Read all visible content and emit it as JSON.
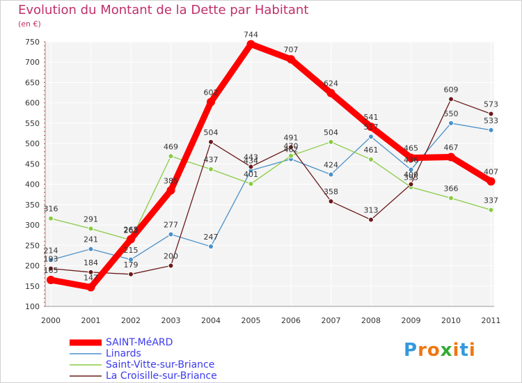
{
  "header": {
    "title": "Evolution du Montant de la Dette par Habitant",
    "subtitle": "(en €)"
  },
  "chart_data": {
    "type": "line",
    "title": "Evolution du Montant de la Dette par Habitant",
    "ylabel": "(en €)",
    "xlabel": "",
    "x": [
      "2000",
      "2001",
      "2002",
      "2003",
      "2004",
      "2005",
      "2006",
      "2007",
      "2008",
      "2009",
      "2010",
      "2011"
    ],
    "ylim": [
      100,
      750
    ],
    "yticks": [
      100,
      150,
      200,
      250,
      300,
      350,
      400,
      450,
      500,
      550,
      600,
      650,
      700,
      750
    ],
    "grid": true,
    "legend_position": "bottom-left",
    "series": [
      {
        "name": "SAINT-MéARD",
        "color": "#ff0000",
        "values": [
          165,
          147,
          265,
          385,
          602,
          744,
          707,
          624,
          541,
          465,
          467,
          407
        ],
        "labels": [
          "165",
          "147",
          "265",
          "385",
          "602",
          "744",
          "707",
          "624",
          "541",
          "465",
          "467",
          "407"
        ]
      },
      {
        "name": "Linards",
        "color": "#4a90c8",
        "values": [
          214,
          241,
          215,
          277,
          247,
          434,
          462,
          424,
          517,
          436,
          550,
          533
        ],
        "labels": [
          "214",
          "241",
          "215",
          "277",
          "247",
          "434",
          "462",
          "424",
          "517",
          "436",
          "550",
          "533"
        ]
      },
      {
        "name": "Saint-Vitte-sur-Briance",
        "color": "#88cc44",
        "values": [
          316,
          291,
          263,
          469,
          437,
          401,
          470,
          504,
          461,
          393,
          366,
          337
        ],
        "labels": [
          "316",
          "291",
          "263",
          "469",
          "437",
          "401",
          "470",
          "504",
          "461",
          "393",
          "366",
          "337"
        ]
      },
      {
        "name": "La Croisille-sur-Briance",
        "color": "#6b1a1a",
        "values": [
          193,
          184,
          179,
          200,
          504,
          443,
          491,
          358,
          313,
          400,
          609,
          573
        ],
        "labels": [
          "193",
          "184",
          "179",
          "200",
          "504",
          "443",
          "491",
          "358",
          "313",
          "400",
          "609",
          "573"
        ]
      }
    ]
  },
  "legend": {
    "items": [
      {
        "label": "SAINT-MéARD",
        "color": "#ff0000",
        "width": 9
      },
      {
        "label": "Linards",
        "color": "#4a90c8",
        "width": 1.5
      },
      {
        "label": "Saint-Vitte-sur-Briance",
        "color": "#88cc44",
        "width": 1.5
      },
      {
        "label": "La Croisille-sur-Briance",
        "color": "#6b1a1a",
        "width": 1.5
      }
    ]
  },
  "logo": {
    "letters": [
      "P",
      "r",
      "o",
      "x",
      "i",
      "t",
      "i"
    ],
    "colors": [
      "#3399dd",
      "#ee7711",
      "#ee7711",
      "#33aa33",
      "#ee7711",
      "#3399dd",
      "#ee7711"
    ]
  }
}
